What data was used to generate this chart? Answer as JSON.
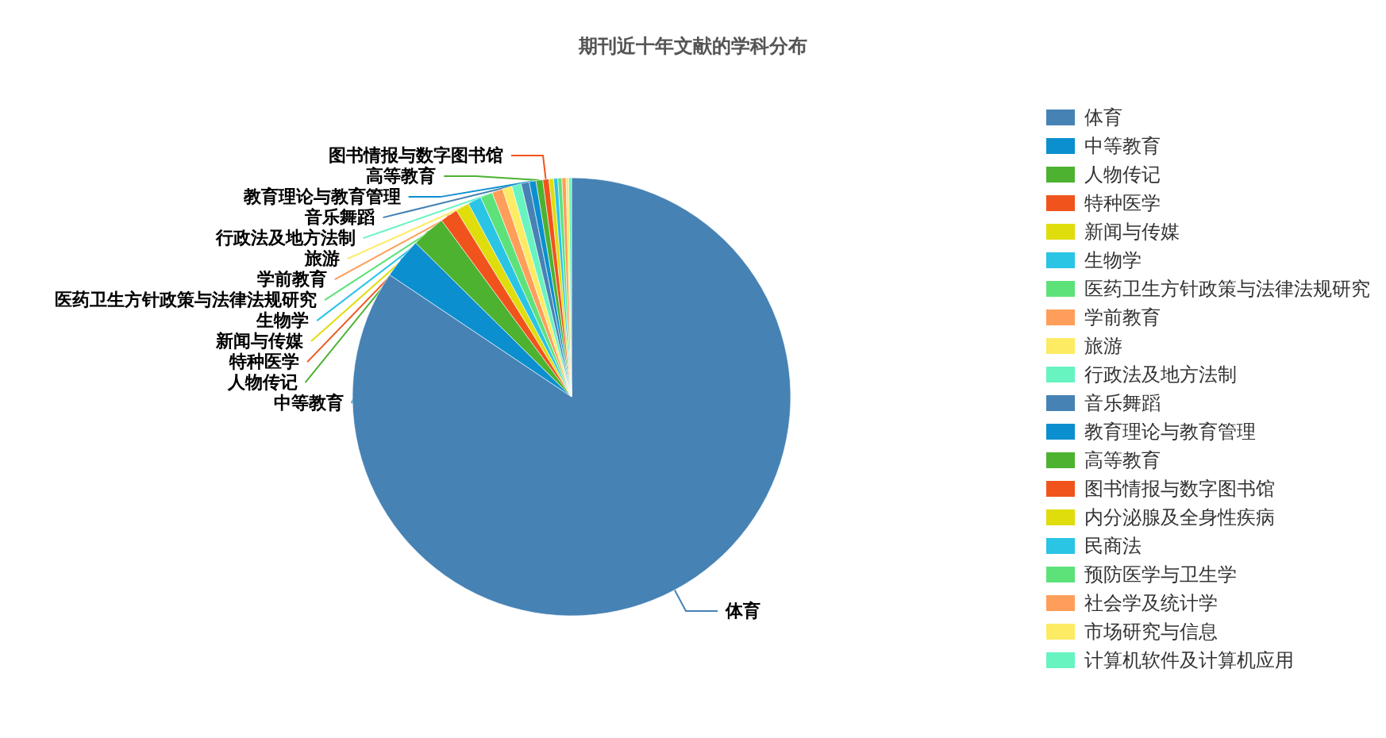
{
  "chart_data": {
    "type": "pie",
    "title": "期刊近十年文献的学科分布",
    "categories": [
      "体育",
      "中等教育",
      "人物传记",
      "特种医学",
      "新闻与传媒",
      "生物学",
      "医药卫生方针政策与法律法规研究",
      "学前教育",
      "旅游",
      "行政法及地方法制",
      "音乐舞蹈",
      "教育理论与教育管理",
      "高等教育",
      "图书情报与数字图书馆",
      "内分泌腺及全身性疾病",
      "民商法",
      "预防医学与卫生学",
      "社会学及统计学",
      "市场研究与信息",
      "计算机软件及计算机应用"
    ],
    "values": [
      84.4,
      3.0,
      2.5,
      1.3,
      1.0,
      1.0,
      0.9,
      0.8,
      0.7,
      0.7,
      0.6,
      0.5,
      0.5,
      0.45,
      0.35,
      0.3,
      0.3,
      0.3,
      0.2,
      0.2
    ],
    "colors": [
      "#4682b4",
      "#0b8fcf",
      "#4cb230",
      "#f0541c",
      "#dfdd0b",
      "#2ac4e5",
      "#5de27a",
      "#ff9e5a",
      "#fdeb63",
      "#67f4c0",
      "#4682b4",
      "#0b8fcf",
      "#4cb230",
      "#f0541c",
      "#dfdd0b",
      "#2ac4e5",
      "#5de27a",
      "#ff9e5a",
      "#fdeb63",
      "#67f4c0"
    ],
    "legend": "right"
  }
}
